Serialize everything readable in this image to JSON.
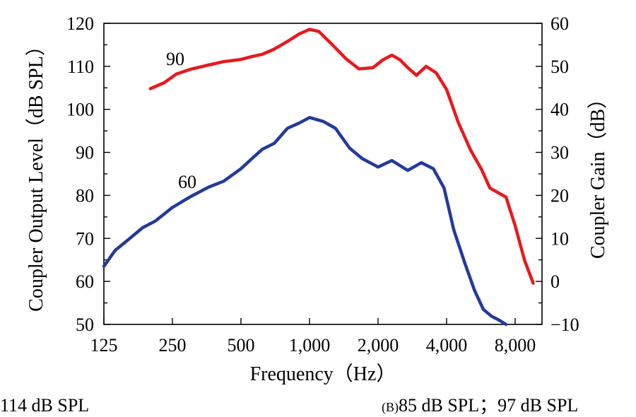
{
  "chart_data": {
    "type": "line",
    "xlabel": "Frequency（Hz）",
    "ylabel": "Coupler Output Level（dB SPL）",
    "y2label": "Coupler Gain（dB）",
    "x_scale": "log",
    "x_ticks": [
      125,
      250,
      500,
      1000,
      2000,
      4000,
      8000
    ],
    "x_tick_labels": [
      "125",
      "250",
      "500",
      "1,000",
      "2,000",
      "4,000",
      "8,000"
    ],
    "xlim": [
      125,
      10500
    ],
    "ylim": [
      50,
      120
    ],
    "y_ticks": [
      50,
      60,
      70,
      80,
      90,
      100,
      110,
      120
    ],
    "y2lim": [
      -10,
      60
    ],
    "y2_ticks": [
      -10,
      0,
      10,
      20,
      30,
      40,
      50,
      60
    ],
    "y2_tick_labels": [
      "−10",
      "0",
      "10",
      "20",
      "30",
      "40",
      "50",
      "60"
    ],
    "grid": false,
    "series": [
      {
        "name": "90",
        "color": "#e8191e",
        "x": [
          200,
          230,
          260,
          300,
          360,
          420,
          500,
          560,
          620,
          700,
          800,
          900,
          1000,
          1100,
          1250,
          1450,
          1650,
          1900,
          2100,
          2300,
          2500,
          2700,
          2950,
          3250,
          3600,
          4000,
          4500,
          5100,
          5700,
          6200,
          6700,
          7300,
          8000,
          8800,
          9600
        ],
        "y": [
          104.8,
          106.2,
          108.2,
          109.3,
          110.3,
          111.1,
          111.6,
          112.3,
          112.8,
          114.0,
          115.8,
          117.5,
          118.6,
          118.1,
          115.2,
          111.7,
          109.4,
          109.7,
          111.5,
          112.6,
          111.5,
          109.7,
          107.9,
          110.0,
          108.5,
          104.6,
          97.0,
          90.5,
          86.0,
          81.7,
          80.7,
          79.6,
          73.0,
          64.9,
          59.6
        ]
      },
      {
        "name": "60",
        "color": "#233a9c",
        "x": [
          125,
          140,
          160,
          185,
          210,
          250,
          300,
          360,
          420,
          500,
          560,
          620,
          700,
          800,
          900,
          1000,
          1150,
          1300,
          1500,
          1700,
          2000,
          2300,
          2700,
          3100,
          3500,
          3900,
          4300,
          4800,
          5300,
          5800,
          6300,
          6800,
          7300
        ],
        "y": [
          63.5,
          67.2,
          69.7,
          72.5,
          74.0,
          77.2,
          79.7,
          81.9,
          83.3,
          86.2,
          88.6,
          90.7,
          92.1,
          95.6,
          96.8,
          98.1,
          97.2,
          95.6,
          91.0,
          88.6,
          86.6,
          88.1,
          85.8,
          87.6,
          86.2,
          81.7,
          72.0,
          64.4,
          58.0,
          53.5,
          51.9,
          51.0,
          48.7
        ]
      }
    ],
    "annotations": [
      "90",
      "60"
    ]
  },
  "bottom_notes": {
    "left": "114 dB SPL",
    "right_small": "(B)",
    "right": "85 dB SPL；97 dB SPL"
  }
}
